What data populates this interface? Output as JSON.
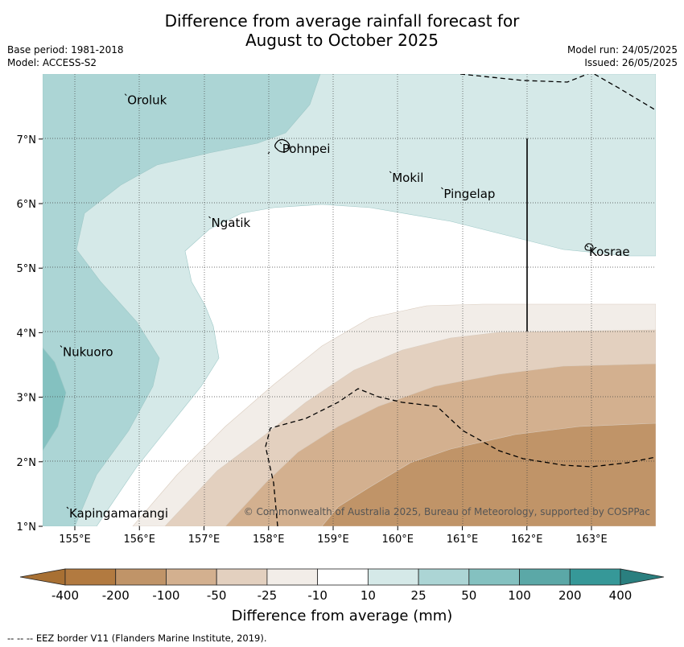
{
  "title_line1": "Difference from average rainfall forecast for",
  "title_line2": "August to October 2025",
  "base_period": "Base period: 1981-2018",
  "model": "Model: ACCESS-S2",
  "model_run": "Model run: 24/05/2025",
  "issued": "Issued: 26/05/2025",
  "copyright": "© Commonwealth of Australia 2025, Bureau of Meteorology, supported by COSPPac",
  "colorbar_title": "Difference from average (mm)",
  "footnote": "-- -- -- EEZ border V11 (Flanders Marine Institute, 2019).",
  "longitude_ticks": [
    "155°E",
    "156°E",
    "157°E",
    "158°E",
    "159°E",
    "160°E",
    "161°E",
    "162°E",
    "163°E"
  ],
  "latitude_ticks": [
    "1°N",
    "2°N",
    "3°N",
    "4°N",
    "5°N",
    "6°N",
    "7°N"
  ],
  "places": [
    {
      "name": "Oroluk",
      "lon": 155.8,
      "lat": 7.6
    },
    {
      "name": "Pohnpei",
      "lon": 158.2,
      "lat": 6.85
    },
    {
      "name": "Mokil",
      "lon": 159.9,
      "lat": 6.4
    },
    {
      "name": "Pingelap",
      "lon": 160.7,
      "lat": 6.15
    },
    {
      "name": "Ngatik",
      "lon": 157.1,
      "lat": 5.7
    },
    {
      "name": "Kosrae",
      "lon": 162.95,
      "lat": 5.25
    },
    {
      "name": "Nukuoro",
      "lon": 154.8,
      "lat": 3.7
    },
    {
      "name": "Kapingamarangi",
      "lon": 154.9,
      "lat": 1.2
    }
  ],
  "colorbar": {
    "ticks": [
      "-400",
      "-200",
      "-100",
      "-50",
      "-25",
      "-10",
      "10",
      "25",
      "50",
      "100",
      "200",
      "400"
    ],
    "colors": [
      "#a87033",
      "#b27a40",
      "#c09468",
      "#d3b08f",
      "#e3d0bf",
      "#f2ede8",
      "#ffffff",
      "#d5e9e8",
      "#acd5d5",
      "#84c1c0",
      "#5ba8a7",
      "#369898",
      "#2a7f7f"
    ]
  }
}
